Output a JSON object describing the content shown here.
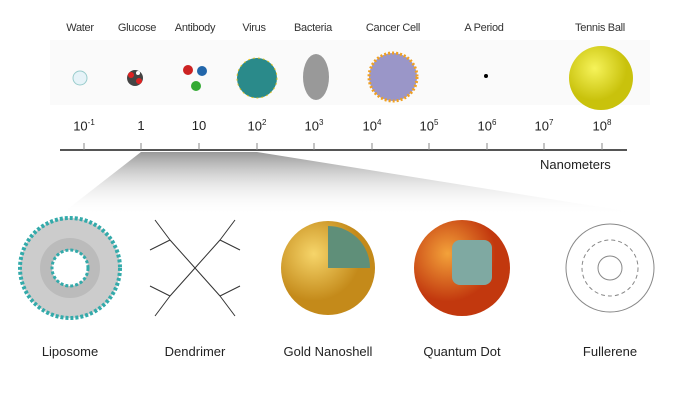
{
  "scale": {
    "items": [
      "Water",
      "Glucose",
      "Antibody",
      "Virus",
      "Bacteria",
      "Cancer Cell",
      "A Period",
      "Tennis Ball"
    ],
    "ticks": [
      {
        "base": "10",
        "exp": "-1"
      },
      {
        "base": "1",
        "exp": ""
      },
      {
        "base": "10",
        "exp": ""
      },
      {
        "base": "10",
        "exp": "2"
      },
      {
        "base": "10",
        "exp": "3"
      },
      {
        "base": "10",
        "exp": "4"
      },
      {
        "base": "10",
        "exp": "5"
      },
      {
        "base": "10",
        "exp": "6"
      },
      {
        "base": "10",
        "exp": "7"
      },
      {
        "base": "10",
        "exp": "8"
      }
    ],
    "unit": "Nanometers"
  },
  "nanoparticles": [
    "Liposome",
    "Dendrimer",
    "Gold Nanoshell",
    "Quantum Dot",
    "Fullerene"
  ]
}
